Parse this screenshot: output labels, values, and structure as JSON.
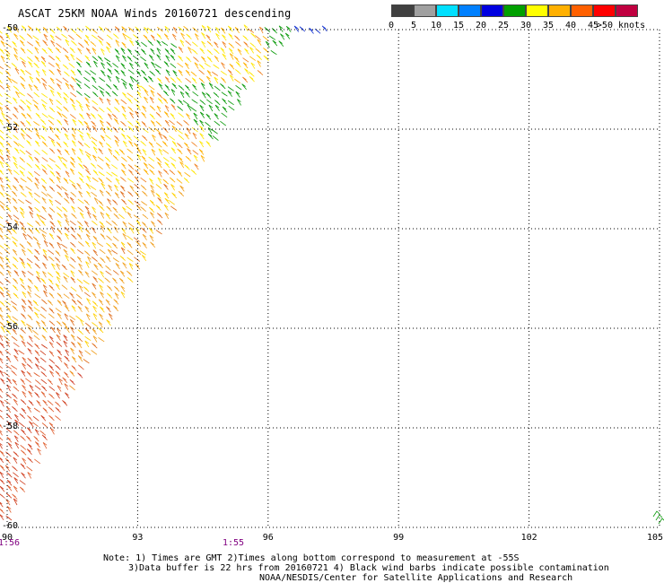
{
  "title": "ASCAT 25KM NOAA Winds 20160721 descending",
  "colorbar": {
    "colors": [
      "#404040",
      "#a0a0a0",
      "#00e0ff",
      "#0080ff",
      "#0000e0",
      "#00a000",
      "#ffff00",
      "#ffb000",
      "#ff6000",
      "#ff0000",
      "#c00040",
      "#603010",
      "#c08060",
      "#ff00ff",
      "#c000c0",
      "#800080",
      "#400060",
      "#200040"
    ],
    "labels": [
      "0",
      "5",
      "10",
      "15",
      "20",
      "25",
      "30",
      "35",
      "40",
      "45",
      ">50 knots"
    ]
  },
  "map": {
    "lon_labels": [
      "90",
      "93",
      "96",
      "99",
      "102",
      "105"
    ],
    "lat_labels": [
      "-50",
      "-52",
      "-54",
      "-56",
      "-58",
      "-60"
    ],
    "lon_range": [
      90,
      105
    ],
    "lat_range": [
      -60,
      -50
    ],
    "grid": true,
    "time_labels": [
      "1:56",
      "1:55"
    ]
  },
  "notes": {
    "line1": "Note: 1) Times are GMT 2)Times along bottom correspond to measurement at -55S",
    "line2": "3)Data buffer is 22 hrs from 20160721 4) Black wind barbs indicate possible contamination",
    "line3": "NOAA/NESDIS/Center for Satellite Applications and Research"
  }
}
